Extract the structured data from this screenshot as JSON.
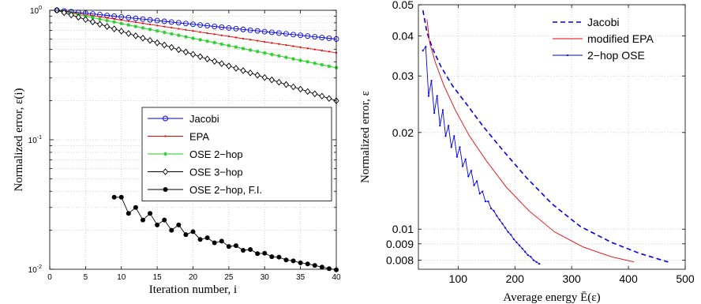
{
  "chart_data": [
    {
      "type": "line",
      "xlabel": "Iteration number, i",
      "ylabel": "Normalized error, ε(i)",
      "xscale": "linear",
      "yscale": "log",
      "xlim": [
        0,
        40
      ],
      "ylim": [
        0.01,
        1
      ],
      "xticks": [
        0,
        5,
        10,
        15,
        20,
        25,
        30,
        35,
        40
      ],
      "yticks": [
        {
          "value": 1,
          "base": "10",
          "exp": "0"
        },
        {
          "value": 0.1,
          "base": "10",
          "exp": "-1"
        },
        {
          "value": 0.01,
          "base": "10",
          "exp": "-2"
        }
      ],
      "grid": true,
      "legend_position": "right-center",
      "series": [
        {
          "name": "Jacobi",
          "color": "#0000ee",
          "marker": "circle",
          "x_start": 1,
          "x_end": 40,
          "y_start": 1.0,
          "y_end": 0.6,
          "shape": "geometric"
        },
        {
          "name": "EPA",
          "color": "#ee0000",
          "marker": "dot",
          "x_start": 1,
          "x_end": 40,
          "y_start": 1.0,
          "y_end": 0.47,
          "shape": "geometric"
        },
        {
          "name": "OSE 2−hop",
          "color": "#22cc22",
          "marker": "star",
          "x_start": 1,
          "x_end": 40,
          "y_start": 1.0,
          "y_end": 0.36,
          "shape": "geometric"
        },
        {
          "name": "OSE 3−hop",
          "color": "#000000",
          "marker": "diamond",
          "x_start": 1,
          "x_end": 40,
          "y_start": 1.0,
          "y_end": 0.2,
          "shape": "geometric"
        },
        {
          "name": "OSE 2−hop, F.I.",
          "color": "#000000",
          "marker": "filled-circle",
          "x": [
            9,
            10,
            11,
            12,
            13,
            14,
            15,
            16,
            17,
            18,
            19,
            20,
            21,
            22,
            23,
            24,
            25,
            26,
            27,
            28,
            29,
            30,
            31,
            32,
            33,
            34,
            35,
            36,
            37,
            38,
            39,
            40
          ],
          "y": [
            0.036,
            0.036,
            0.027,
            0.03,
            0.024,
            0.027,
            0.022,
            0.024,
            0.02,
            0.022,
            0.0185,
            0.0195,
            0.017,
            0.0175,
            0.016,
            0.0165,
            0.015,
            0.0152,
            0.014,
            0.0142,
            0.0132,
            0.0133,
            0.0125,
            0.0124,
            0.0118,
            0.0116,
            0.0112,
            0.011,
            0.0107,
            0.0104,
            0.0101,
            0.0099
          ]
        }
      ]
    },
    {
      "type": "line",
      "xlabel": "Average energy Ē(ε)",
      "ylabel": "Normalized error, ε",
      "xscale": "linear",
      "yscale": "log",
      "xlim": [
        30,
        500
      ],
      "ylim": [
        0.0075,
        0.05
      ],
      "xticks": [
        100,
        200,
        300,
        400,
        500
      ],
      "yticks": [
        0.008,
        0.009,
        0.01,
        0.02,
        0.03,
        0.04,
        0.05
      ],
      "ytick_labels": [
        "0.008",
        "0.009",
        "0.01",
        "0.02",
        "0.03",
        "0.04",
        "0.05"
      ],
      "grid": true,
      "legend_position": "top-right",
      "series": [
        {
          "name": "Jacobi",
          "color": "#0000ee",
          "style": "dashed",
          "x": [
            38,
            45,
            55,
            70,
            90,
            115,
            145,
            180,
            220,
            265,
            315,
            370,
            420,
            470
          ],
          "y": [
            0.048,
            0.041,
            0.0365,
            0.032,
            0.028,
            0.0245,
            0.0208,
            0.0175,
            0.0145,
            0.012,
            0.0102,
            0.0091,
            0.0084,
            0.0079
          ]
        },
        {
          "name": "modified EPA",
          "color": "#ee0000",
          "style": "solid",
          "x": [
            45,
            50,
            60,
            75,
            95,
            120,
            150,
            185,
            225,
            270,
            320,
            370,
            410
          ],
          "y": [
            0.045,
            0.038,
            0.033,
            0.028,
            0.0235,
            0.0195,
            0.0163,
            0.0135,
            0.0114,
            0.0098,
            0.0088,
            0.0082,
            0.0079
          ]
        },
        {
          "name": "2−hop OSE",
          "color": "#0000ee",
          "style": "solid",
          "marker": "dot",
          "x": [
            38,
            43,
            48,
            53,
            58,
            63,
            68,
            73,
            78,
            83,
            88,
            93,
            98,
            103,
            108,
            113,
            118,
            123,
            128,
            133,
            138,
            143,
            148,
            153,
            158,
            163,
            168,
            173,
            178,
            183,
            188,
            193,
            198,
            203,
            208,
            213,
            218,
            223,
            228,
            233,
            238,
            243
          ],
          "y": [
            0.036,
            0.037,
            0.026,
            0.029,
            0.023,
            0.026,
            0.021,
            0.0235,
            0.0195,
            0.021,
            0.018,
            0.0195,
            0.0168,
            0.018,
            0.0157,
            0.0165,
            0.0146,
            0.0152,
            0.0137,
            0.0141,
            0.0129,
            0.0131,
            0.0122,
            0.0122,
            0.0116,
            0.0114,
            0.011,
            0.0107,
            0.0104,
            0.0101,
            0.0098,
            0.0096,
            0.0093,
            0.0091,
            0.0089,
            0.0087,
            0.0085,
            0.0083,
            0.0082,
            0.008,
            0.0079,
            0.0078
          ]
        }
      ]
    }
  ]
}
